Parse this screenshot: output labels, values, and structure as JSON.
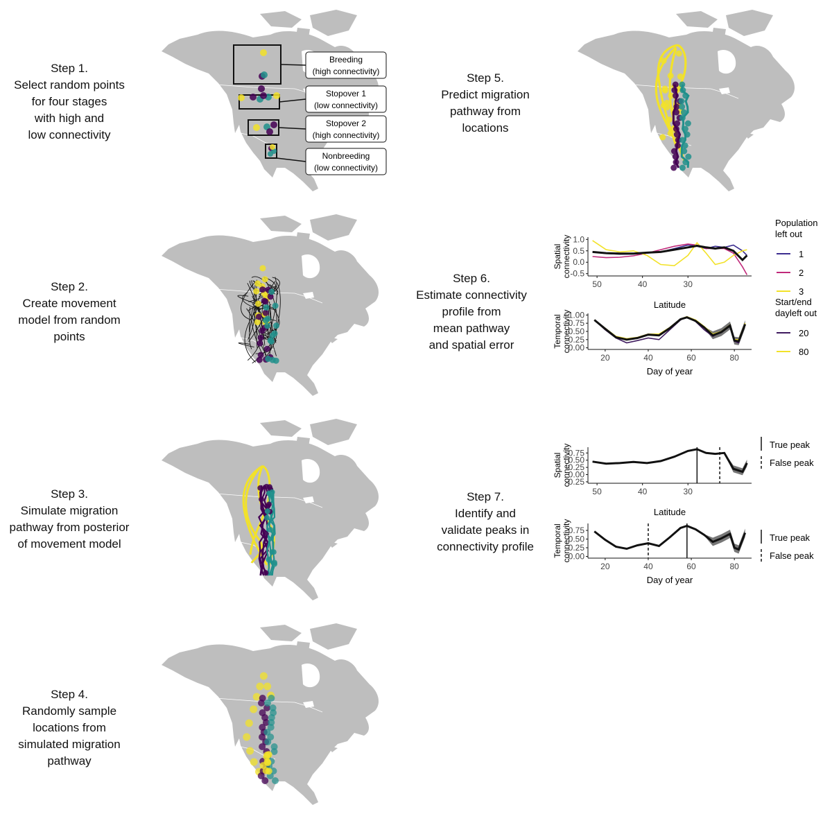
{
  "steps": [
    {
      "title": "Step 1.",
      "lines": [
        "Select random points",
        "for four stages",
        "with high and",
        "low connectivity"
      ]
    },
    {
      "title": "Step 2.",
      "lines": [
        "Create movement",
        "model from random",
        "points"
      ]
    },
    {
      "title": "Step 3.",
      "lines": [
        "Simulate migration",
        "pathway from posterior",
        "of movement model"
      ]
    },
    {
      "title": "Step 4.",
      "lines": [
        "Randomly sample",
        "locations from",
        "simulated migration",
        "pathway"
      ]
    },
    {
      "title": "Step 5.",
      "lines": [
        "Predict migration",
        "pathway from",
        "locations"
      ]
    },
    {
      "title": "Step 6.",
      "lines": [
        "Estimate connectivity",
        "profile from",
        "mean pathway",
        "and spatial error"
      ]
    },
    {
      "title": "Step 7.",
      "lines": [
        "Identify and",
        "validate peaks in",
        "connectivity profile"
      ]
    }
  ],
  "step1_labels": [
    {
      "name": "Breeding",
      "detail": "(high connectivity)"
    },
    {
      "name": "Stopover 1",
      "detail": "(low connectivity)"
    },
    {
      "name": "Stopover 2",
      "detail": "(high connectivity)"
    },
    {
      "name": "Nonbreeding",
      "detail": "(low connectivity)"
    }
  ],
  "colors": {
    "yellow": "#F2E229",
    "purple": "#440154",
    "teal": "#21908C",
    "magenta": "#C0297A",
    "navy": "#3B2D8F",
    "land": "#BEBEBE",
    "dark_purple": "#3E1A5E"
  },
  "chart_data": [
    {
      "panel": "step6-spatial",
      "type": "line",
      "ylabel": "Spatial\nconnectivity",
      "xlabel": "Latitude",
      "x_ticks": [
        "50",
        "40",
        "30"
      ],
      "y_ticks": [
        "1.0",
        "0.5",
        "0.0",
        "-0.5"
      ],
      "xlim": [
        52,
        16
      ],
      "ylim": [
        -0.6,
        1.1
      ],
      "x": [
        51,
        48,
        45,
        42,
        39,
        36,
        33,
        30,
        28,
        26,
        24,
        22,
        20,
        18,
        17
      ],
      "series": [
        {
          "name": "1",
          "values": [
            0.45,
            0.38,
            0.35,
            0.36,
            0.4,
            0.45,
            0.6,
            0.75,
            0.7,
            0.6,
            0.7,
            0.65,
            0.75,
            0.5,
            0.3
          ]
        },
        {
          "name": "2",
          "values": [
            0.25,
            0.2,
            0.22,
            0.28,
            0.4,
            0.55,
            0.7,
            0.8,
            0.75,
            0.6,
            0.6,
            0.6,
            0.4,
            -0.2,
            -0.55
          ]
        },
        {
          "name": "3",
          "values": [
            0.95,
            0.55,
            0.45,
            0.5,
            0.3,
            -0.1,
            -0.15,
            0.3,
            0.85,
            0.4,
            -0.1,
            0.0,
            0.3,
            0.5,
            0.55
          ]
        },
        {
          "name": "",
          "values": [
            0.45,
            0.4,
            0.38,
            0.38,
            0.42,
            0.45,
            0.55,
            0.65,
            0.72,
            0.65,
            0.6,
            0.65,
            0.5,
            0.1,
            0.3
          ]
        }
      ],
      "legend_title": "Population\nleft out"
    },
    {
      "panel": "step6-temporal",
      "type": "line",
      "ylabel": "Temporal\nconnectivity",
      "xlabel": "Day of year",
      "x_ticks": [
        "20",
        "40",
        "60",
        "80"
      ],
      "y_ticks": [
        "1.00",
        "0.75",
        "0.50",
        "0.25",
        "0.00"
      ],
      "xlim": [
        12,
        88
      ],
      "ylim": [
        -0.05,
        1.05
      ],
      "x": [
        15,
        20,
        25,
        30,
        35,
        40,
        45,
        50,
        55,
        58,
        62,
        66,
        70,
        74,
        78,
        80,
        82,
        85
      ],
      "series": [
        {
          "name": "20",
          "values": [
            0.85,
            0.55,
            0.3,
            0.15,
            0.22,
            0.3,
            0.25,
            0.55,
            0.85,
            0.95,
            0.8,
            0.55,
            0.35,
            0.5,
            0.65,
            0.2,
            0.15,
            0.75
          ]
        },
        {
          "name": "80",
          "values": [
            0.85,
            0.6,
            0.35,
            0.28,
            0.32,
            0.42,
            0.42,
            0.62,
            0.88,
            0.95,
            0.85,
            0.65,
            0.42,
            0.5,
            0.7,
            0.25,
            0.25,
            0.75
          ]
        },
        {
          "name": "",
          "values": [
            0.85,
            0.58,
            0.32,
            0.25,
            0.3,
            0.4,
            0.38,
            0.6,
            0.87,
            0.93,
            0.82,
            0.62,
            0.38,
            0.48,
            0.68,
            0.22,
            0.2,
            0.72
          ]
        }
      ],
      "legend_title": "Start/end\ndayleft out"
    },
    {
      "panel": "step7-spatial",
      "type": "line",
      "ylabel": "Spatial\nconnectivity",
      "xlabel": "Latitude",
      "x_ticks": [
        "50",
        "40",
        "30"
      ],
      "y_ticks": [
        "0.75",
        "0.50",
        "0.25",
        "0.00",
        "-0.25"
      ],
      "xlim": [
        52,
        16
      ],
      "ylim": [
        -0.3,
        0.95
      ],
      "x": [
        51,
        48,
        45,
        42,
        39,
        36,
        33,
        30,
        28,
        26,
        24,
        22,
        20,
        18,
        17
      ],
      "values": [
        0.45,
        0.38,
        0.4,
        0.44,
        0.4,
        0.47,
        0.62,
        0.82,
        0.88,
        0.75,
        0.72,
        0.75,
        0.2,
        0.1,
        0.4
      ],
      "true_peak": 28,
      "false_peak": 23
    },
    {
      "panel": "step7-temporal",
      "type": "line",
      "ylabel": "Temporal\nconnectivity",
      "xlabel": "Day of year",
      "x_ticks": [
        "20",
        "40",
        "60",
        "80"
      ],
      "y_ticks": [
        "0.75",
        "0.50",
        "0.25",
        "0.00"
      ],
      "xlim": [
        12,
        88
      ],
      "ylim": [
        -0.05,
        0.95
      ],
      "x": [
        15,
        20,
        25,
        30,
        35,
        40,
        45,
        50,
        55,
        58,
        62,
        66,
        70,
        74,
        78,
        80,
        82,
        85
      ],
      "values": [
        0.72,
        0.48,
        0.28,
        0.22,
        0.32,
        0.38,
        0.3,
        0.55,
        0.82,
        0.88,
        0.78,
        0.62,
        0.42,
        0.52,
        0.65,
        0.25,
        0.2,
        0.68
      ],
      "true_peak": 58,
      "false_peak": 40
    }
  ],
  "peak_legend": {
    "true": "True peak",
    "false": "False peak"
  }
}
